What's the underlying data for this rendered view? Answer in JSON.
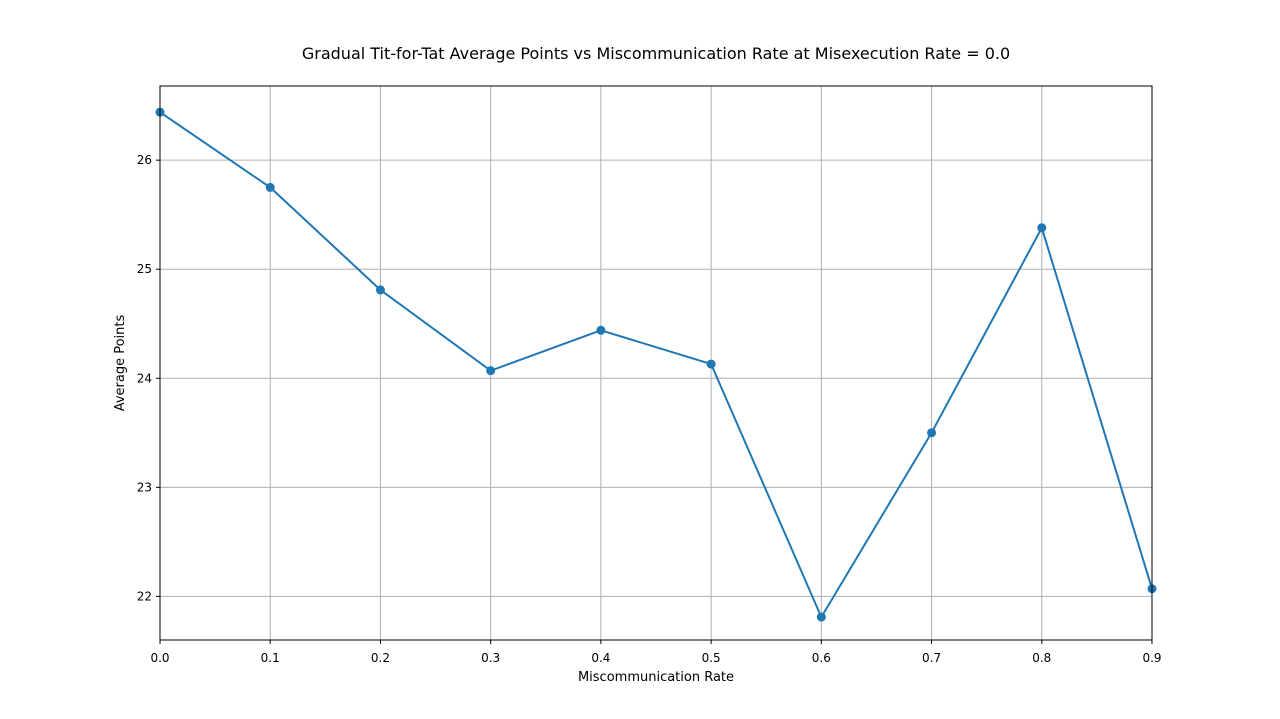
{
  "chart_data": {
    "type": "line",
    "title": "Gradual Tit-for-Tat Average Points vs Miscommunication Rate at Misexecution Rate = 0.0",
    "xlabel": "Miscommunication Rate",
    "ylabel": "Average Points",
    "xlim": [
      0.0,
      0.9
    ],
    "ylim": [
      21.6,
      26.68
    ],
    "xticks": [
      "0.0",
      "0.1",
      "0.2",
      "0.3",
      "0.4",
      "0.5",
      "0.6",
      "0.7",
      "0.8",
      "0.9"
    ],
    "yticks": [
      "22",
      "23",
      "24",
      "25",
      "26"
    ],
    "grid": true,
    "series": [
      {
        "x": [
          0.0,
          0.1,
          0.2,
          0.3,
          0.4,
          0.5,
          0.6,
          0.7,
          0.8,
          0.9
        ],
        "y": [
          26.44,
          25.75,
          24.81,
          24.07,
          24.44,
          24.13,
          21.81,
          23.5,
          25.38,
          22.07
        ],
        "color": "#1f77b4",
        "marker": "circle"
      }
    ]
  }
}
